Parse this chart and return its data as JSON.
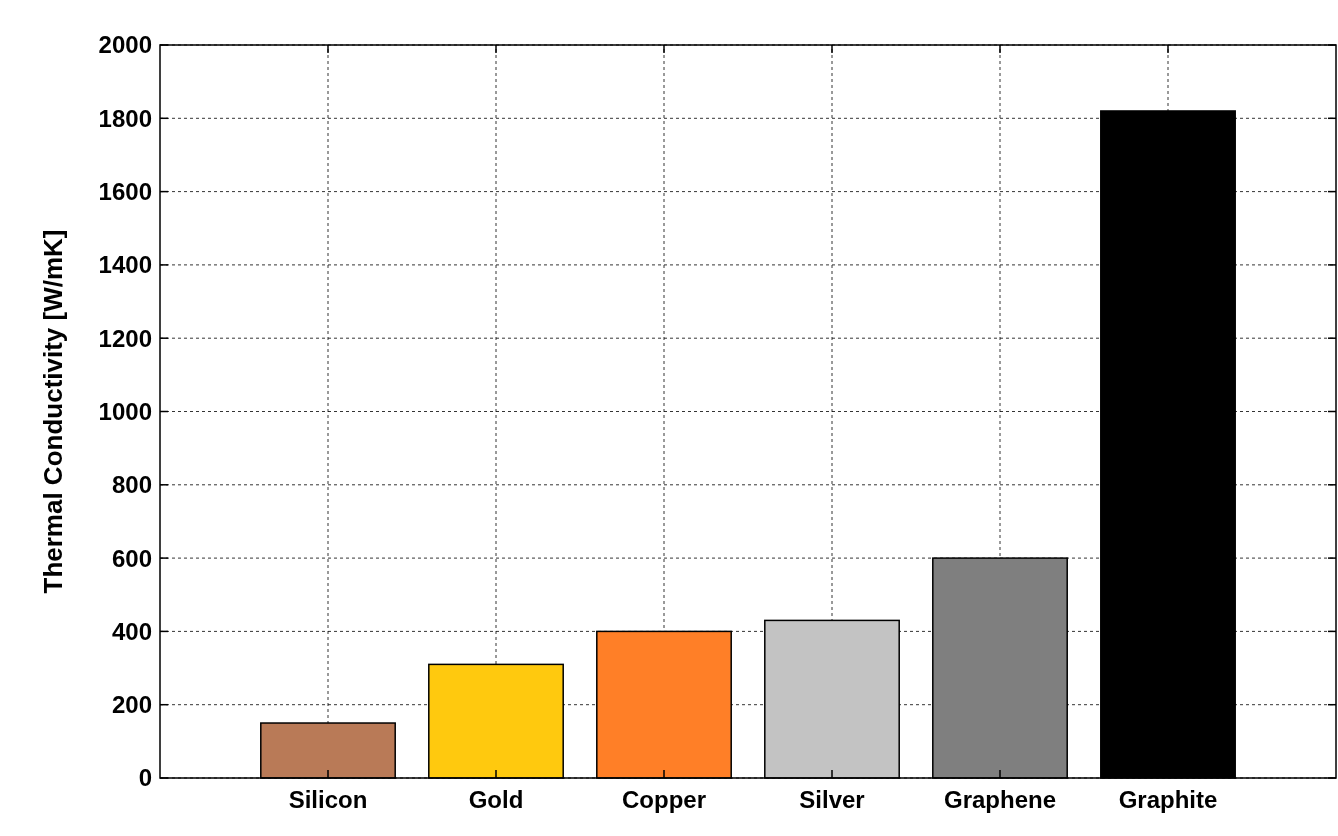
{
  "chart_data": {
    "type": "bar",
    "ylabel": "Thermal Conductivity [W/mK]",
    "categories": [
      "Silicon",
      "Gold",
      "Copper",
      "Silver",
      "Graphene",
      "Graphite"
    ],
    "values": [
      150,
      310,
      400,
      430,
      600,
      1820
    ],
    "colors": [
      "#b97a57",
      "#ffc90e",
      "#ff7f27",
      "#c3c3c3",
      "#7f7f7f",
      "#000000"
    ],
    "ylim": [
      0,
      2000
    ],
    "yticks": [
      0,
      200,
      400,
      600,
      800,
      1000,
      1200,
      1400,
      1600,
      1800,
      2000
    ],
    "grid": true
  }
}
